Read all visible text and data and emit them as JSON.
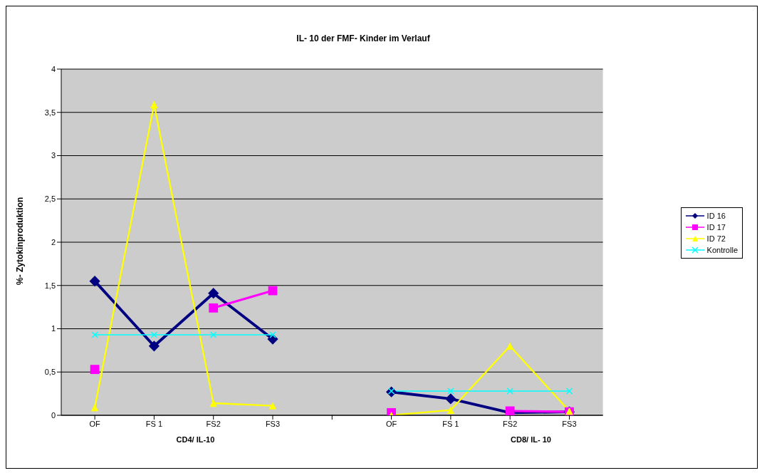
{
  "chart_data": {
    "type": "line",
    "title": "IL- 10 der FMF- Kinder im Verlauf",
    "ylabel": "%- Zytokinproduktion",
    "categories": [
      "OF",
      "FS 1",
      "FS2",
      "FS3",
      null,
      "OF",
      "FS 1",
      "FS2",
      "FS3"
    ],
    "annotations": [
      "CD4/ IL-10",
      "CD8/ IL- 10"
    ],
    "series": [
      {
        "name": "ID 16",
        "color": "#000080",
        "marker": "diamond",
        "values": [
          1.55,
          0.8,
          1.41,
          0.88,
          null,
          0.27,
          0.19,
          0.03,
          0.04
        ]
      },
      {
        "name": "ID 17",
        "color": "#ff00ff",
        "marker": "square",
        "values": [
          0.53,
          null,
          1.24,
          1.44,
          null,
          0.03,
          null,
          0.05,
          0.04
        ]
      },
      {
        "name": "ID 72",
        "color": "#ffff00",
        "marker": "triangle",
        "values": [
          0.09,
          3.59,
          0.14,
          0.11,
          null,
          0,
          0.06,
          0.8,
          0.05
        ]
      },
      {
        "name": "Kontrolle",
        "color": "#00ffff",
        "marker": "cross",
        "values": [
          0.93,
          0.93,
          0.93,
          0.93,
          null,
          0.28,
          0.28,
          0.28,
          0.28
        ]
      }
    ],
    "ylim": [
      0,
      4
    ],
    "yticks": [
      0,
      {
        "value": 0.5,
        "label": "0,5"
      },
      1,
      {
        "value": 1.5,
        "label": "1,5"
      },
      2,
      {
        "value": 2.5,
        "label": "2,5"
      },
      3,
      {
        "value": 3.5,
        "label": "3,5"
      },
      4
    ],
    "grid": "y",
    "legend": "right",
    "line_style": "solid"
  }
}
